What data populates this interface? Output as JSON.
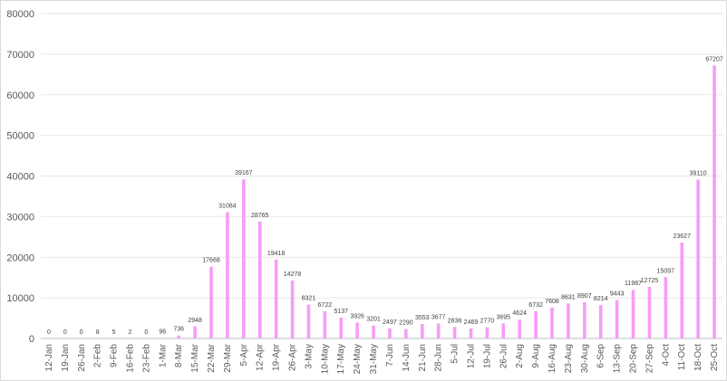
{
  "chart_data": {
    "type": "bar",
    "title": "",
    "xlabel": "",
    "ylabel": "",
    "ylim": [
      0,
      80000
    ],
    "yticks": [
      0,
      10000,
      20000,
      30000,
      40000,
      50000,
      60000,
      70000,
      80000
    ],
    "grid": true,
    "legend": "none",
    "bar_color": "#f79cf7",
    "categories": [
      "12-Jan",
      "19-Jan",
      "26-Jan",
      "2-Feb",
      "9-Feb",
      "16-Feb",
      "23-Feb",
      "1-Mar",
      "8-Mar",
      "15-Mar",
      "22-Mar",
      "29-Mar",
      "5-Apr",
      "12-Apr",
      "19-Apr",
      "26-Apr",
      "3-May",
      "10-May",
      "17-May",
      "24-May",
      "31-May",
      "7-Jun",
      "14-Jun",
      "21-Jun",
      "28-Jun",
      "5-Jul",
      "12-Jul",
      "19-Jul",
      "26-Jul",
      "2-Aug",
      "9-Aug",
      "16-Aug",
      "23-Aug",
      "30-Aug",
      "6-Sep",
      "13-Sep",
      "20-Sep",
      "27-Sep",
      "4-Oct",
      "11-Oct",
      "18-Oct",
      "25-Oct"
    ],
    "values": [
      0,
      0,
      0,
      8,
      5,
      2,
      0,
      96,
      736,
      2948,
      17668,
      31084,
      39167,
      28765,
      19418,
      14278,
      8321,
      6722,
      5137,
      3926,
      3201,
      2497,
      2290,
      3553,
      3677,
      2836,
      2469,
      2770,
      3695,
      4624,
      6732,
      7608,
      8631,
      8907,
      8214,
      9443,
      11987,
      12725,
      15097,
      23627,
      39110,
      67207
    ]
  }
}
